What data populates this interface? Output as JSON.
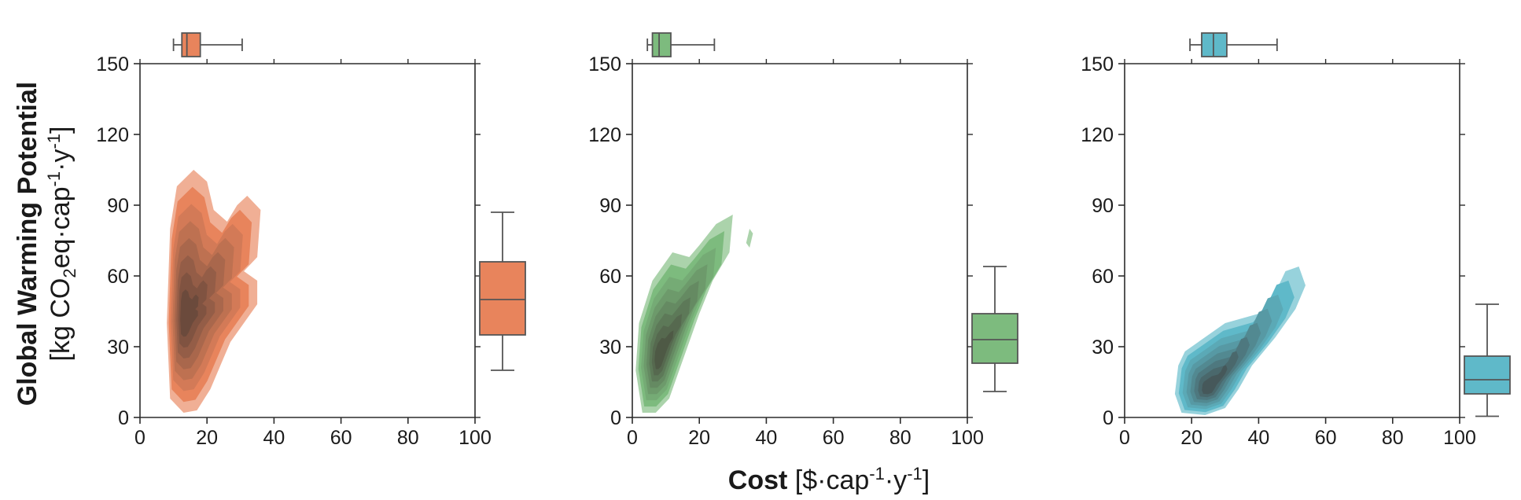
{
  "figure": {
    "ylabel_bold": "Global Warming Potential",
    "ylabel_unit_prefix": "[kg CO",
    "ylabel_unit_sub": "2",
    "ylabel_unit_mid1": "eq·cap",
    "ylabel_unit_sup1": "-1",
    "ylabel_unit_mid2": "·y",
    "ylabel_unit_sup2": "-1",
    "ylabel_unit_suffix": "]",
    "xlabel_bold": "Cost",
    "xlabel_unit_prefix": " [$·cap",
    "xlabel_unit_sup1": "-1",
    "xlabel_unit_mid": "·y",
    "xlabel_unit_sup2": "-1",
    "xlabel_unit_suffix": "]"
  },
  "chart_data": [
    {
      "type": "kde-density-with-marginal-boxplots",
      "panel": 1,
      "color": "#E8845C",
      "xlim": [
        0,
        100
      ],
      "ylim": [
        0,
        150
      ],
      "xticks": [
        0,
        20,
        40,
        60,
        80,
        100
      ],
      "yticks": [
        0,
        30,
        60,
        90,
        120,
        150
      ],
      "density_peak": {
        "x": 13,
        "y": 42
      },
      "cost_box": {
        "min": 10,
        "q1": 12.5,
        "median": 14,
        "q3": 18,
        "max": 30.5
      },
      "gwp_box": {
        "min": 20,
        "q1": 35,
        "median": 50,
        "q3": 66,
        "max": 87
      }
    },
    {
      "type": "kde-density-with-marginal-boxplots",
      "panel": 2,
      "color": "#7DBB7E",
      "xlim": [
        0,
        100
      ],
      "ylim": [
        0,
        150
      ],
      "xticks": [
        0,
        20,
        40,
        60,
        80,
        100
      ],
      "yticks": [
        0,
        30,
        60,
        90,
        120,
        150
      ],
      "density_peak": {
        "x": 8,
        "y": 25
      },
      "cost_box": {
        "min": 4.5,
        "q1": 6,
        "median": 8,
        "q3": 11.5,
        "max": 24.5
      },
      "gwp_box": {
        "min": 11,
        "q1": 23,
        "median": 33,
        "q3": 44,
        "max": 64
      }
    },
    {
      "type": "kde-density-with-marginal-boxplots",
      "panel": 3,
      "color": "#5FB9C9",
      "xlim": [
        0,
        100
      ],
      "ylim": [
        0,
        150
      ],
      "xticks": [
        0,
        20,
        40,
        60,
        80,
        100
      ],
      "yticks": [
        0,
        30,
        60,
        90,
        120,
        150
      ],
      "density_peak": {
        "x": 25,
        "y": 12
      },
      "cost_box": {
        "min": 19.5,
        "q1": 23,
        "median": 26.5,
        "q3": 30.5,
        "max": 45.5
      },
      "gwp_box": {
        "min": 0.5,
        "q1": 10,
        "median": 16,
        "q3": 26,
        "max": 48
      }
    }
  ]
}
